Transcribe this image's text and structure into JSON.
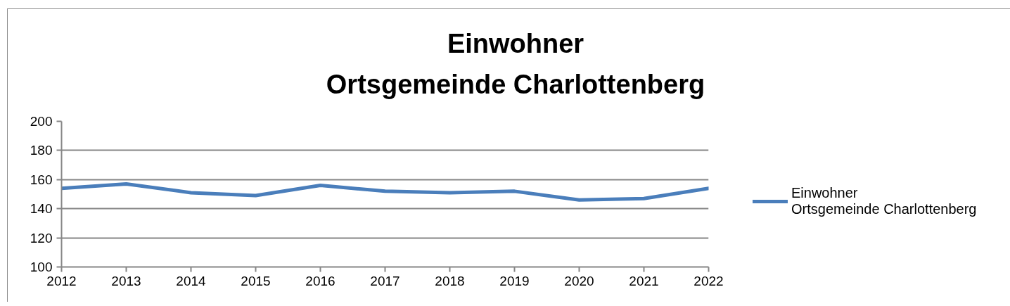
{
  "chart_data": {
    "type": "line",
    "title": "Einwohner\nOrtsgemeinde Charlottenberg",
    "x": [
      2012,
      2013,
      2014,
      2015,
      2016,
      2017,
      2018,
      2019,
      2020,
      2021,
      2022
    ],
    "series": [
      {
        "name": "Einwohner\nOrtsgemeinde Charlottenberg",
        "color": "#4a7ebb",
        "values": [
          154,
          157,
          151,
          149,
          156,
          152,
          151,
          152,
          146,
          147,
          154
        ]
      }
    ],
    "xlim": [
      2012,
      2022
    ],
    "xticks": [
      2012,
      2013,
      2014,
      2015,
      2016,
      2017,
      2018,
      2019,
      2020,
      2021,
      2022
    ],
    "ylim": [
      100,
      200
    ],
    "yticks": [
      100,
      120,
      140,
      160,
      180,
      200
    ],
    "grid": "y",
    "legend": "right",
    "line_style": "solid"
  }
}
